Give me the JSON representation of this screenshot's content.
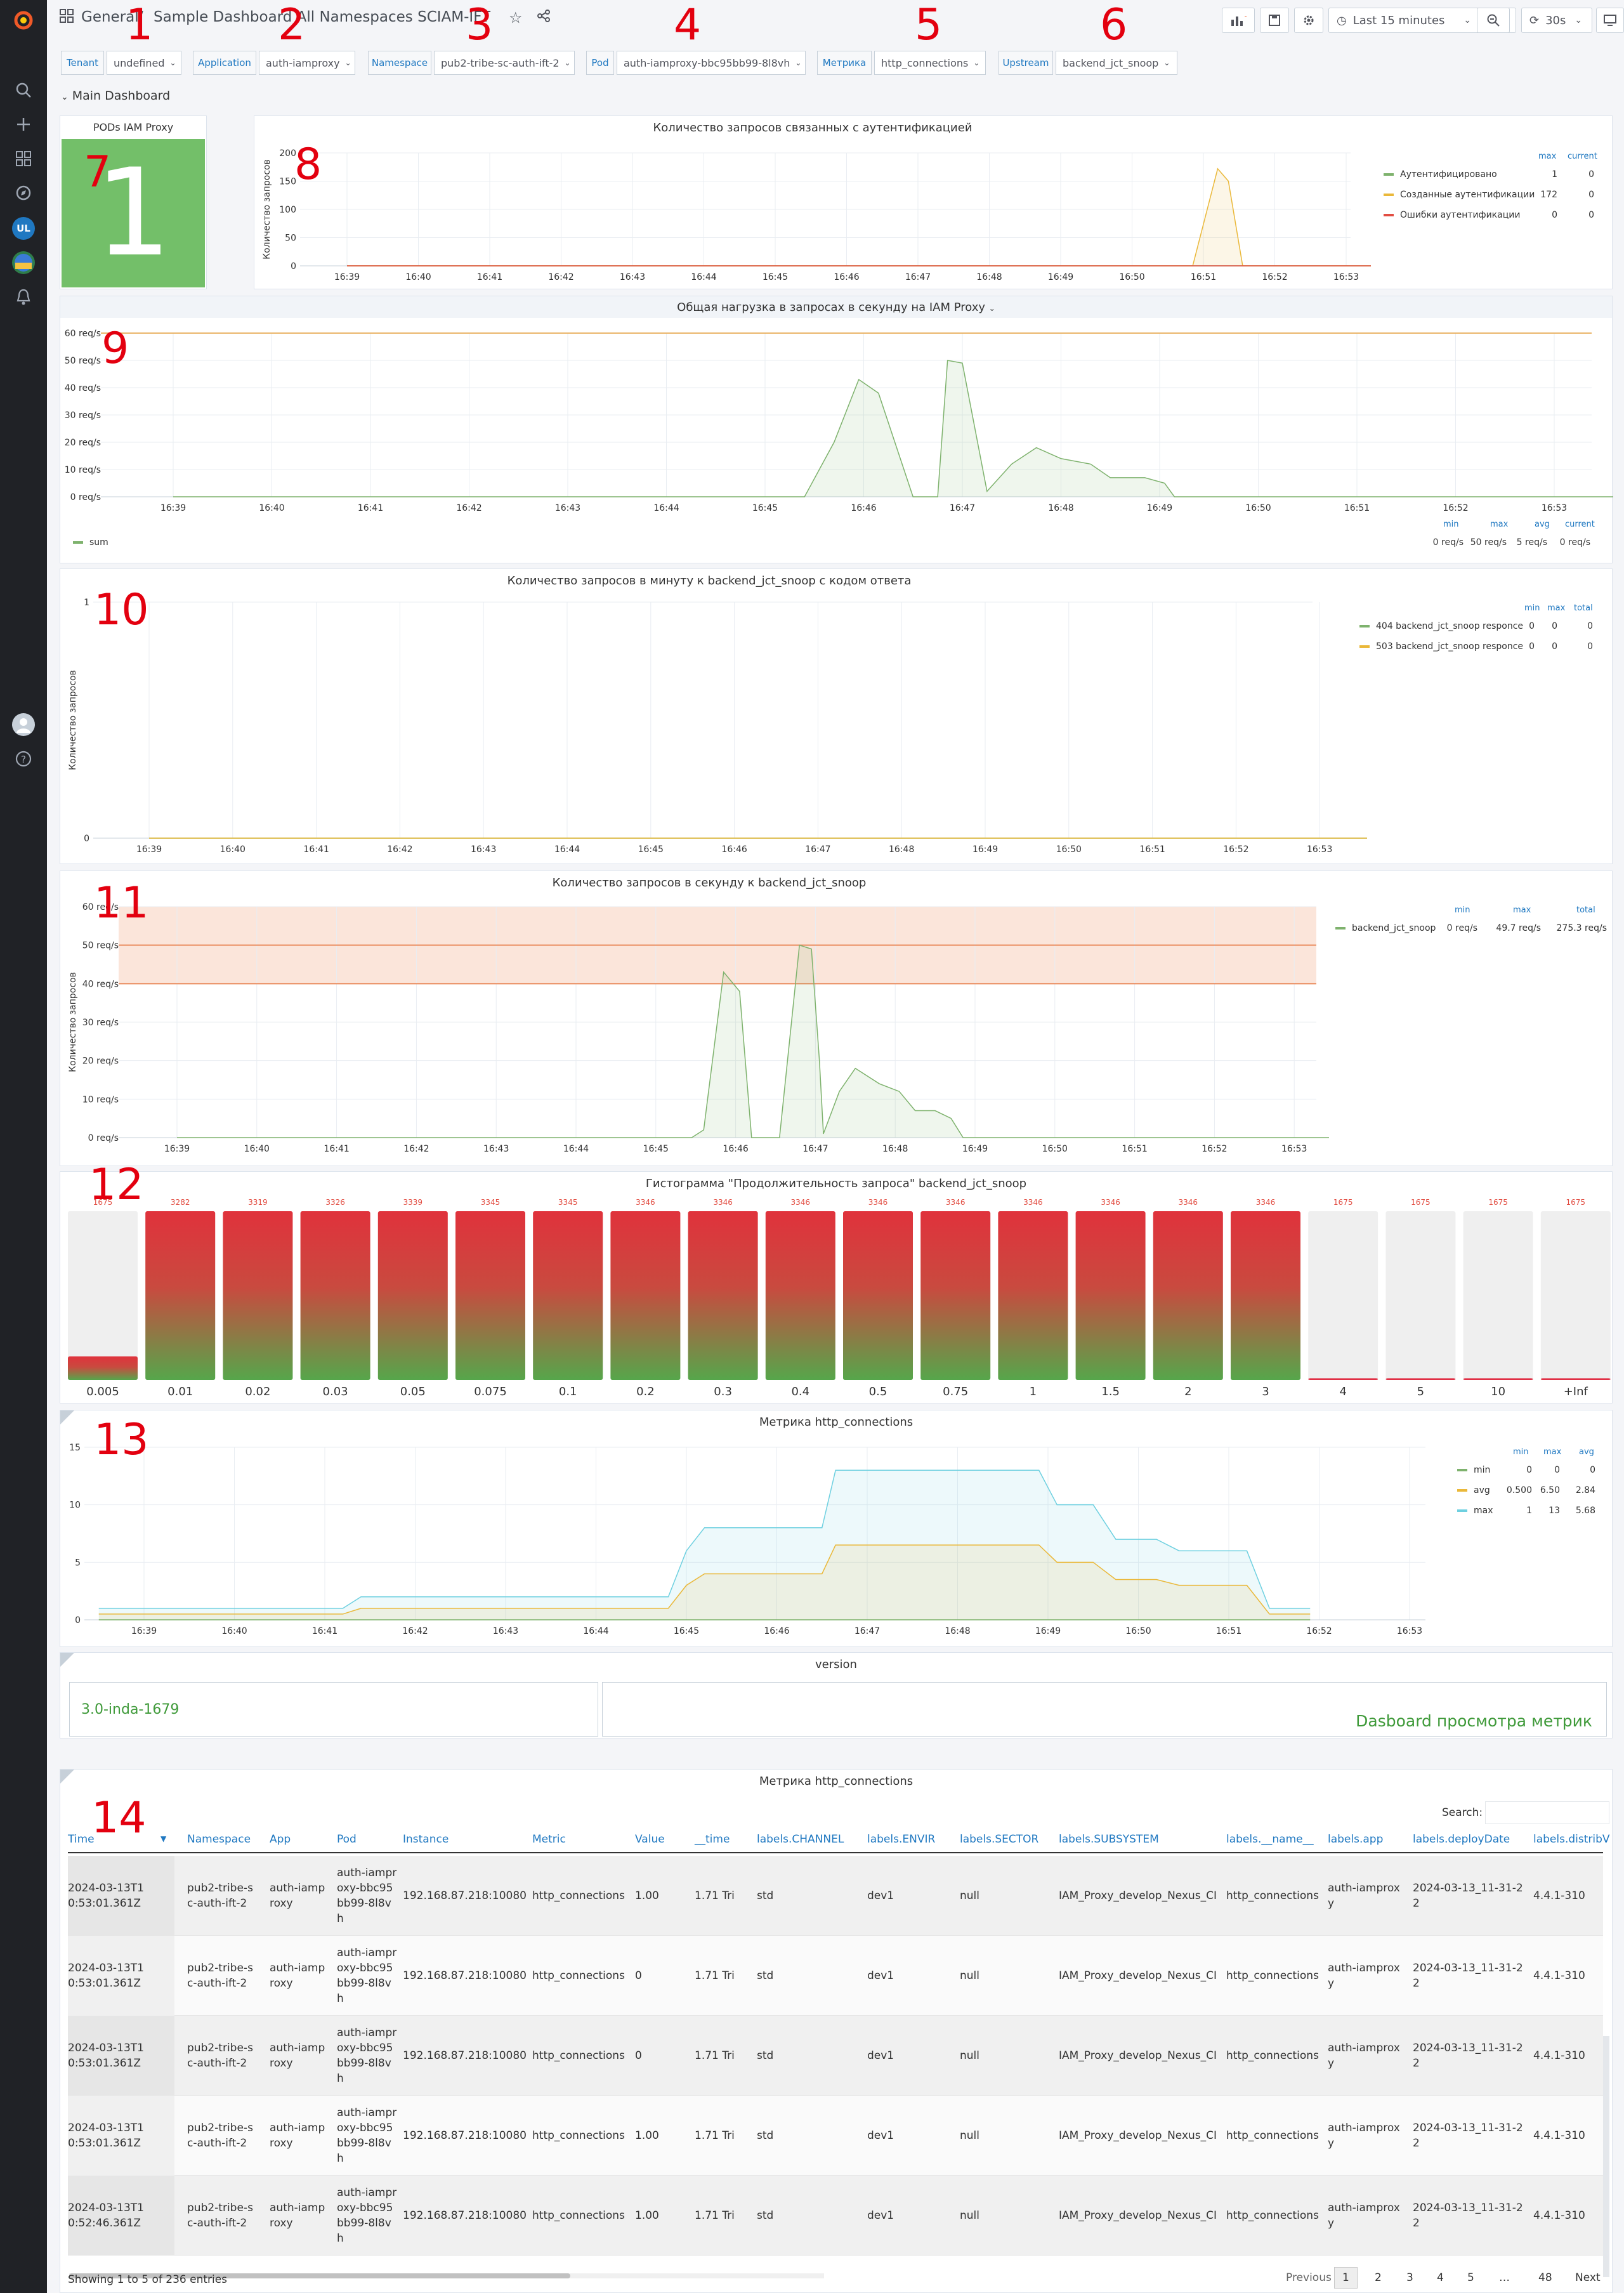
{
  "breadcrumb": {
    "folder": "General",
    "separator": "/",
    "title": "Sample Dashboard All Namespaces SCIAM-IFT"
  },
  "toolbar": {
    "time_range": "Last 15 minutes",
    "refresh": "30s"
  },
  "annotations": [
    "1",
    "2",
    "3",
    "4",
    "5",
    "6",
    "7",
    "8",
    "9",
    "10",
    "11",
    "12",
    "13",
    "14"
  ],
  "variables": [
    {
      "label": "Tenant",
      "value": "undefined"
    },
    {
      "label": "Application",
      "value": "auth-iamproxy"
    },
    {
      "label": "Namespace",
      "value": "pub2-tribe-sc-auth-ift-2"
    },
    {
      "label": "Pod",
      "value": "auth-iamproxy-bbc95bb99-8l8vh"
    },
    {
      "label": "Метрика",
      "value": "http_connections"
    },
    {
      "label": "Upstream",
      "value": "backend_jct_snoop"
    }
  ],
  "row_title": "Main Dashboard",
  "stat_panel": {
    "title": "PODs IAM Proxy",
    "value": "1",
    "color": "#73bf69"
  },
  "colors": {
    "green": "#7eb26d",
    "orange": "#eab839",
    "red": "#e24d42",
    "blue": "#6ed0e0",
    "link": "#1f78c1",
    "accent": "#3f9a3a"
  },
  "time_ticks": [
    "16:39",
    "16:40",
    "16:41",
    "16:42",
    "16:43",
    "16:44",
    "16:45",
    "16:46",
    "16:47",
    "16:48",
    "16:49",
    "16:50",
    "16:51",
    "16:52",
    "16:53"
  ],
  "auth_panel": {
    "title": "Количество запросов связанных с аутентификацией",
    "ylabel": "Количество запросов",
    "legend_headers": [
      "max",
      "current"
    ],
    "legend": [
      {
        "name": "Аутентифицировано",
        "max": "1",
        "current": "0",
        "color": "#7eb26d"
      },
      {
        "name": "Созданные аутентификации",
        "max": "172",
        "current": "0",
        "color": "#eab839"
      },
      {
        "name": "Ошибки аутентификации",
        "max": "0",
        "current": "0",
        "color": "#e24d42"
      }
    ]
  },
  "load_panel": {
    "title": "Общая нагрузка в запросах в секунду на IAM Proxy",
    "legend_headers": [
      "min",
      "max",
      "avg",
      "current"
    ],
    "legend": [
      {
        "name": "sum",
        "min": "0 req/s",
        "max": "50 req/s",
        "avg": "5 req/s",
        "current": "0 req/s",
        "color": "#7eb26d"
      }
    ]
  },
  "code_panel": {
    "title": "Количество запросов в минуту к backend_jct_snoop с кодом ответа",
    "ylabel": "Количество запросов",
    "legend_headers": [
      "min",
      "max",
      "total"
    ],
    "legend": [
      {
        "name": "404 backend_jct_snoop responce",
        "min": "0",
        "max": "0",
        "total": "0",
        "color": "#7eb26d"
      },
      {
        "name": "503 backend_jct_snoop responce",
        "min": "0",
        "max": "0",
        "total": "0",
        "color": "#eab839"
      }
    ]
  },
  "rps_panel": {
    "title": "Количество запросов в секунду к backend_jct_snoop",
    "ylabel": "Количество запросов",
    "legend_headers": [
      "min",
      "max",
      "total"
    ],
    "legend": [
      {
        "name": "backend_jct_snoop",
        "min": "0 req/s",
        "max": "49.7 req/s",
        "total": "275.3 req/s",
        "color": "#7eb26d"
      }
    ]
  },
  "histogram_panel": {
    "title": "Гистограмма \"Продолжительность запроса\" backend_jct_snoop"
  },
  "conn_panel": {
    "title": "Метрика http_connections",
    "legend_headers": [
      "min",
      "max",
      "avg"
    ],
    "legend": [
      {
        "name": "min",
        "min": "0",
        "max": "0",
        "avg": "0",
        "color": "#7eb26d"
      },
      {
        "name": "avg",
        "min": "0.500",
        "max": "6.50",
        "avg": "2.84",
        "color": "#eab839"
      },
      {
        "name": "max",
        "min": "1",
        "max": "13",
        "avg": "5.68",
        "color": "#6ed0e0"
      }
    ]
  },
  "version_panel": {
    "title": "version",
    "value": "3.0-inda-1679",
    "text": "Dasboard просмотра метрик"
  },
  "table_panel": {
    "title": "Метрика http_connections",
    "search_label": "Search:",
    "columns": [
      "Time",
      "Namespace",
      "App",
      "Pod",
      "Instance",
      "Metric",
      "Value",
      "__time",
      "labels.CHANNEL",
      "labels.ENVIR",
      "labels.SECTOR",
      "labels.SUBSYSTEM",
      "labels.__name__",
      "labels.app",
      "labels.deployDate",
      "labels.distribV"
    ],
    "rows": [
      [
        "2024-03-13T10:53:01.361Z",
        "pub2-tribe-sc-auth-ift-2",
        "auth-iamproxy",
        "auth-iamproxy-bbc95bb99-8l8vh",
        "192.168.87.218:10080",
        "http_connections",
        "1.00",
        "1.71 Tri",
        "std",
        "dev1",
        "null",
        "IAM_Proxy_develop_Nexus_CI",
        "http_connections",
        "auth-iamproxy",
        "2024-03-13_11-31-22",
        "4.4.1-310"
      ],
      [
        "2024-03-13T10:53:01.361Z",
        "pub2-tribe-sc-auth-ift-2",
        "auth-iamproxy",
        "auth-iamproxy-bbc95bb99-8l8vh",
        "192.168.87.218:10080",
        "http_connections",
        "0",
        "1.71 Tri",
        "std",
        "dev1",
        "null",
        "IAM_Proxy_develop_Nexus_CI",
        "http_connections",
        "auth-iamproxy",
        "2024-03-13_11-31-22",
        "4.4.1-310"
      ],
      [
        "2024-03-13T10:53:01.361Z",
        "pub2-tribe-sc-auth-ift-2",
        "auth-iamproxy",
        "auth-iamproxy-bbc95bb99-8l8vh",
        "192.168.87.218:10080",
        "http_connections",
        "0",
        "1.71 Tri",
        "std",
        "dev1",
        "null",
        "IAM_Proxy_develop_Nexus_CI",
        "http_connections",
        "auth-iamproxy",
        "2024-03-13_11-31-22",
        "4.4.1-310"
      ],
      [
        "2024-03-13T10:53:01.361Z",
        "pub2-tribe-sc-auth-ift-2",
        "auth-iamproxy",
        "auth-iamproxy-bbc95bb99-8l8vh",
        "192.168.87.218:10080",
        "http_connections",
        "1.00",
        "1.71 Tri",
        "std",
        "dev1",
        "null",
        "IAM_Proxy_develop_Nexus_CI",
        "http_connections",
        "auth-iamproxy",
        "2024-03-13_11-31-22",
        "4.4.1-310"
      ],
      [
        "2024-03-13T10:52:46.361Z",
        "pub2-tribe-sc-auth-ift-2",
        "auth-iamproxy",
        "auth-iamproxy-bbc95bb99-8l8vh",
        "192.168.87.218:10080",
        "http_connections",
        "1.00",
        "1.71 Tri",
        "std",
        "dev1",
        "null",
        "IAM_Proxy_develop_Nexus_CI",
        "http_connections",
        "auth-iamproxy",
        "2024-03-13_11-31-22",
        "4.4.1-310"
      ]
    ],
    "footer": "Showing 1 to 5 of 236 entries",
    "pagination": [
      "Previous",
      "1",
      "2",
      "3",
      "4",
      "5",
      "…",
      "48",
      "Next"
    ]
  },
  "chart_data": [
    {
      "type": "line",
      "title": "Количество запросов связанных с аутентификацией",
      "ylabel": "Количество запросов",
      "x": [
        "16:39",
        "16:40",
        "16:41",
        "16:42",
        "16:43",
        "16:44",
        "16:45",
        "16:46",
        "16:47",
        "16:48",
        "16:49",
        "16:50",
        "16:51",
        "16:52",
        "16:53"
      ],
      "ylim": [
        0,
        200
      ],
      "yticks": [
        "0",
        "50",
        "100",
        "150",
        "200"
      ],
      "series": [
        {
          "name": "Аутентифицировано",
          "points": [
            [
              0,
              0
            ],
            [
              15,
              0
            ]
          ]
        },
        {
          "name": "Созданные аутентификации",
          "points": [
            [
              0,
              0
            ],
            [
              11.5,
              0
            ],
            [
              11.85,
              0
            ],
            [
              12.2,
              172
            ],
            [
              12.35,
              150
            ],
            [
              12.55,
              0
            ],
            [
              15,
              0
            ]
          ]
        },
        {
          "name": "Ошибки аутентификации",
          "points": [
            [
              0,
              0
            ],
            [
              15,
              0
            ]
          ]
        }
      ]
    },
    {
      "type": "area",
      "title": "Общая нагрузка в запросах в секунду на IAM Proxy",
      "yticks": [
        "0 req/s",
        "10 req/s",
        "20 req/s",
        "30 req/s",
        "40 req/s",
        "50 req/s",
        "60 req/s"
      ],
      "ylim": [
        0,
        60
      ],
      "threshold": 60,
      "series": [
        {
          "name": "sum",
          "points": [
            [
              0,
              0
            ],
            [
              6.4,
              0
            ],
            [
              6.7,
              20
            ],
            [
              6.95,
              43
            ],
            [
              7.15,
              38
            ],
            [
              7.5,
              0
            ],
            [
              7.55,
              0
            ],
            [
              7.75,
              0
            ],
            [
              7.85,
              50
            ],
            [
              8.0,
              49
            ],
            [
              8.25,
              2
            ],
            [
              8.5,
              12
            ],
            [
              8.75,
              18
            ],
            [
              9.0,
              14
            ],
            [
              9.3,
              12
            ],
            [
              9.5,
              7
            ],
            [
              9.85,
              7
            ],
            [
              10.05,
              5
            ],
            [
              10.15,
              0
            ],
            [
              15,
              0
            ]
          ]
        }
      ]
    },
    {
      "type": "line",
      "title": "Количество запросов в минуту к backend_jct_snoop с кодом ответа",
      "ylim": [
        0,
        1
      ],
      "yticks": [
        "0",
        "1"
      ],
      "series": [
        {
          "name": "404 backend_jct_snoop responce",
          "points": [
            [
              0,
              0
            ],
            [
              15,
              0
            ]
          ]
        },
        {
          "name": "503 backend_jct_snoop responce",
          "points": [
            [
              0,
              0
            ],
            [
              15,
              0
            ]
          ]
        }
      ]
    },
    {
      "type": "area",
      "title": "Количество запросов в секунду к backend_jct_snoop",
      "ylim": [
        0,
        60
      ],
      "yticks": [
        "0 req/s",
        "10 req/s",
        "20 req/s",
        "30 req/s",
        "40 req/s",
        "50 req/s",
        "60 req/s"
      ],
      "thresholds": [
        40,
        50
      ],
      "series": [
        {
          "name": "backend_jct_snoop",
          "points": [
            [
              0,
              0
            ],
            [
              6.45,
              0
            ],
            [
              6.6,
              2
            ],
            [
              6.85,
              43
            ],
            [
              7.05,
              38
            ],
            [
              7.2,
              0
            ],
            [
              7.55,
              0
            ],
            [
              7.8,
              50
            ],
            [
              7.95,
              49
            ],
            [
              8.05,
              20
            ],
            [
              8.1,
              1
            ],
            [
              8.3,
              12
            ],
            [
              8.5,
              18
            ],
            [
              8.8,
              14
            ],
            [
              9.05,
              12
            ],
            [
              9.25,
              7
            ],
            [
              9.5,
              7
            ],
            [
              9.7,
              5
            ],
            [
              9.85,
              0
            ],
            [
              15,
              0
            ]
          ]
        }
      ]
    },
    {
      "type": "bar",
      "title": "Гистограмма \"Продолжительность запроса\" backend_jct_snoop",
      "categories": [
        "0.005",
        "0.01",
        "0.02",
        "0.03",
        "0.05",
        "0.075",
        "0.1",
        "0.2",
        "0.3",
        "0.4",
        "0.5",
        "0.75",
        "1",
        "1.5",
        "2",
        "3",
        "4",
        "5",
        "10",
        "+Inf"
      ],
      "values": [
        1675,
        3282,
        3319,
        3326,
        3339,
        3345,
        3345,
        3346,
        3346,
        3346,
        3346,
        3346,
        3346,
        3346,
        3346,
        3346,
        1675,
        1675,
        1675,
        1675
      ],
      "max": 3346,
      "fill_fraction": [
        0.14,
        1,
        1,
        1,
        1,
        1,
        1,
        1,
        1,
        1,
        1,
        1,
        1,
        1,
        1,
        1,
        0.01,
        0.01,
        0.01,
        0.01
      ]
    },
    {
      "type": "area",
      "title": "Метрика http_connections",
      "ylim": [
        0,
        15
      ],
      "yticks": [
        "0",
        "5",
        "10",
        "15"
      ],
      "series": [
        {
          "name": "max",
          "points": [
            [
              -0.5,
              1
            ],
            [
              2.2,
              1
            ],
            [
              2.4,
              2
            ],
            [
              5.8,
              2
            ],
            [
              6.0,
              6
            ],
            [
              6.2,
              8
            ],
            [
              7.5,
              8
            ],
            [
              7.65,
              13
            ],
            [
              9.9,
              13
            ],
            [
              10.1,
              10
            ],
            [
              10.5,
              10
            ],
            [
              10.75,
              7
            ],
            [
              11.2,
              7
            ],
            [
              11.45,
              6
            ],
            [
              12.2,
              6
            ],
            [
              12.45,
              1
            ],
            [
              12.9,
              1
            ]
          ]
        },
        {
          "name": "avg",
          "points": [
            [
              -0.5,
              0.5
            ],
            [
              2.2,
              0.5
            ],
            [
              2.4,
              1
            ],
            [
              5.8,
              1
            ],
            [
              6.0,
              3
            ],
            [
              6.2,
              4
            ],
            [
              7.5,
              4
            ],
            [
              7.65,
              6.5
            ],
            [
              9.9,
              6.5
            ],
            [
              10.1,
              5
            ],
            [
              10.5,
              5
            ],
            [
              10.75,
              3.5
            ],
            [
              11.2,
              3.5
            ],
            [
              11.45,
              3
            ],
            [
              12.2,
              3
            ],
            [
              12.45,
              0.5
            ],
            [
              12.9,
              0.5
            ]
          ]
        },
        {
          "name": "min",
          "points": [
            [
              -0.5,
              0
            ],
            [
              12.9,
              0
            ]
          ]
        }
      ]
    }
  ]
}
